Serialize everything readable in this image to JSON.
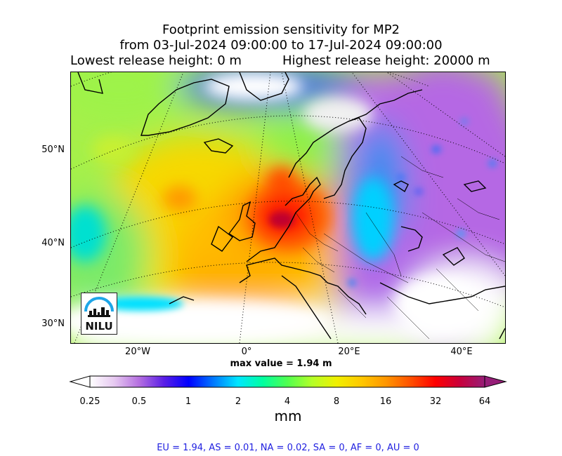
{
  "title": {
    "line1": "Footprint emission sensitivity for MP2",
    "line2": "from 03-Jul-2024 09:00:00 to 17-Jul-2024 09:00:00",
    "line3_left": "Lowest release height: 0 m",
    "line3_right": "Highest release height: 20000 m"
  },
  "map": {
    "lat_labels": [
      "50°N",
      "40°N",
      "30°N"
    ],
    "lon_labels": [
      "20°W",
      "0°",
      "20°E",
      "40°E"
    ],
    "max_value": "max value = 1.94 m",
    "logo_text": "NILU",
    "colors": {
      "ocean_green": "#a6f04a",
      "yellow": "#f2e200",
      "orange": "#ffa800",
      "red": "#ff1a00",
      "purple": "#8a1cc8",
      "violet": "#c070e8",
      "blue": "#1a2cf0"
    }
  },
  "colorbar": {
    "ticks": [
      "0.25",
      "0.5",
      "1",
      "2",
      "4",
      "8",
      "16",
      "32",
      "64"
    ],
    "units": "mm",
    "colors": [
      "#ffffff",
      "#e6c8f0",
      "#b46ee0",
      "#5a1ee6",
      "#0000ff",
      "#0078ff",
      "#00e6ff",
      "#00ffa0",
      "#50ff50",
      "#b4ff28",
      "#f0f000",
      "#ffc800",
      "#ff9600",
      "#ff5000",
      "#ff0000",
      "#c8003c",
      "#961e78"
    ]
  },
  "stats": {
    "text": "EU = 1.94,  AS = 0.01,  NA = 0.02,  SA = 0,  AF = 0,  AU = 0"
  }
}
